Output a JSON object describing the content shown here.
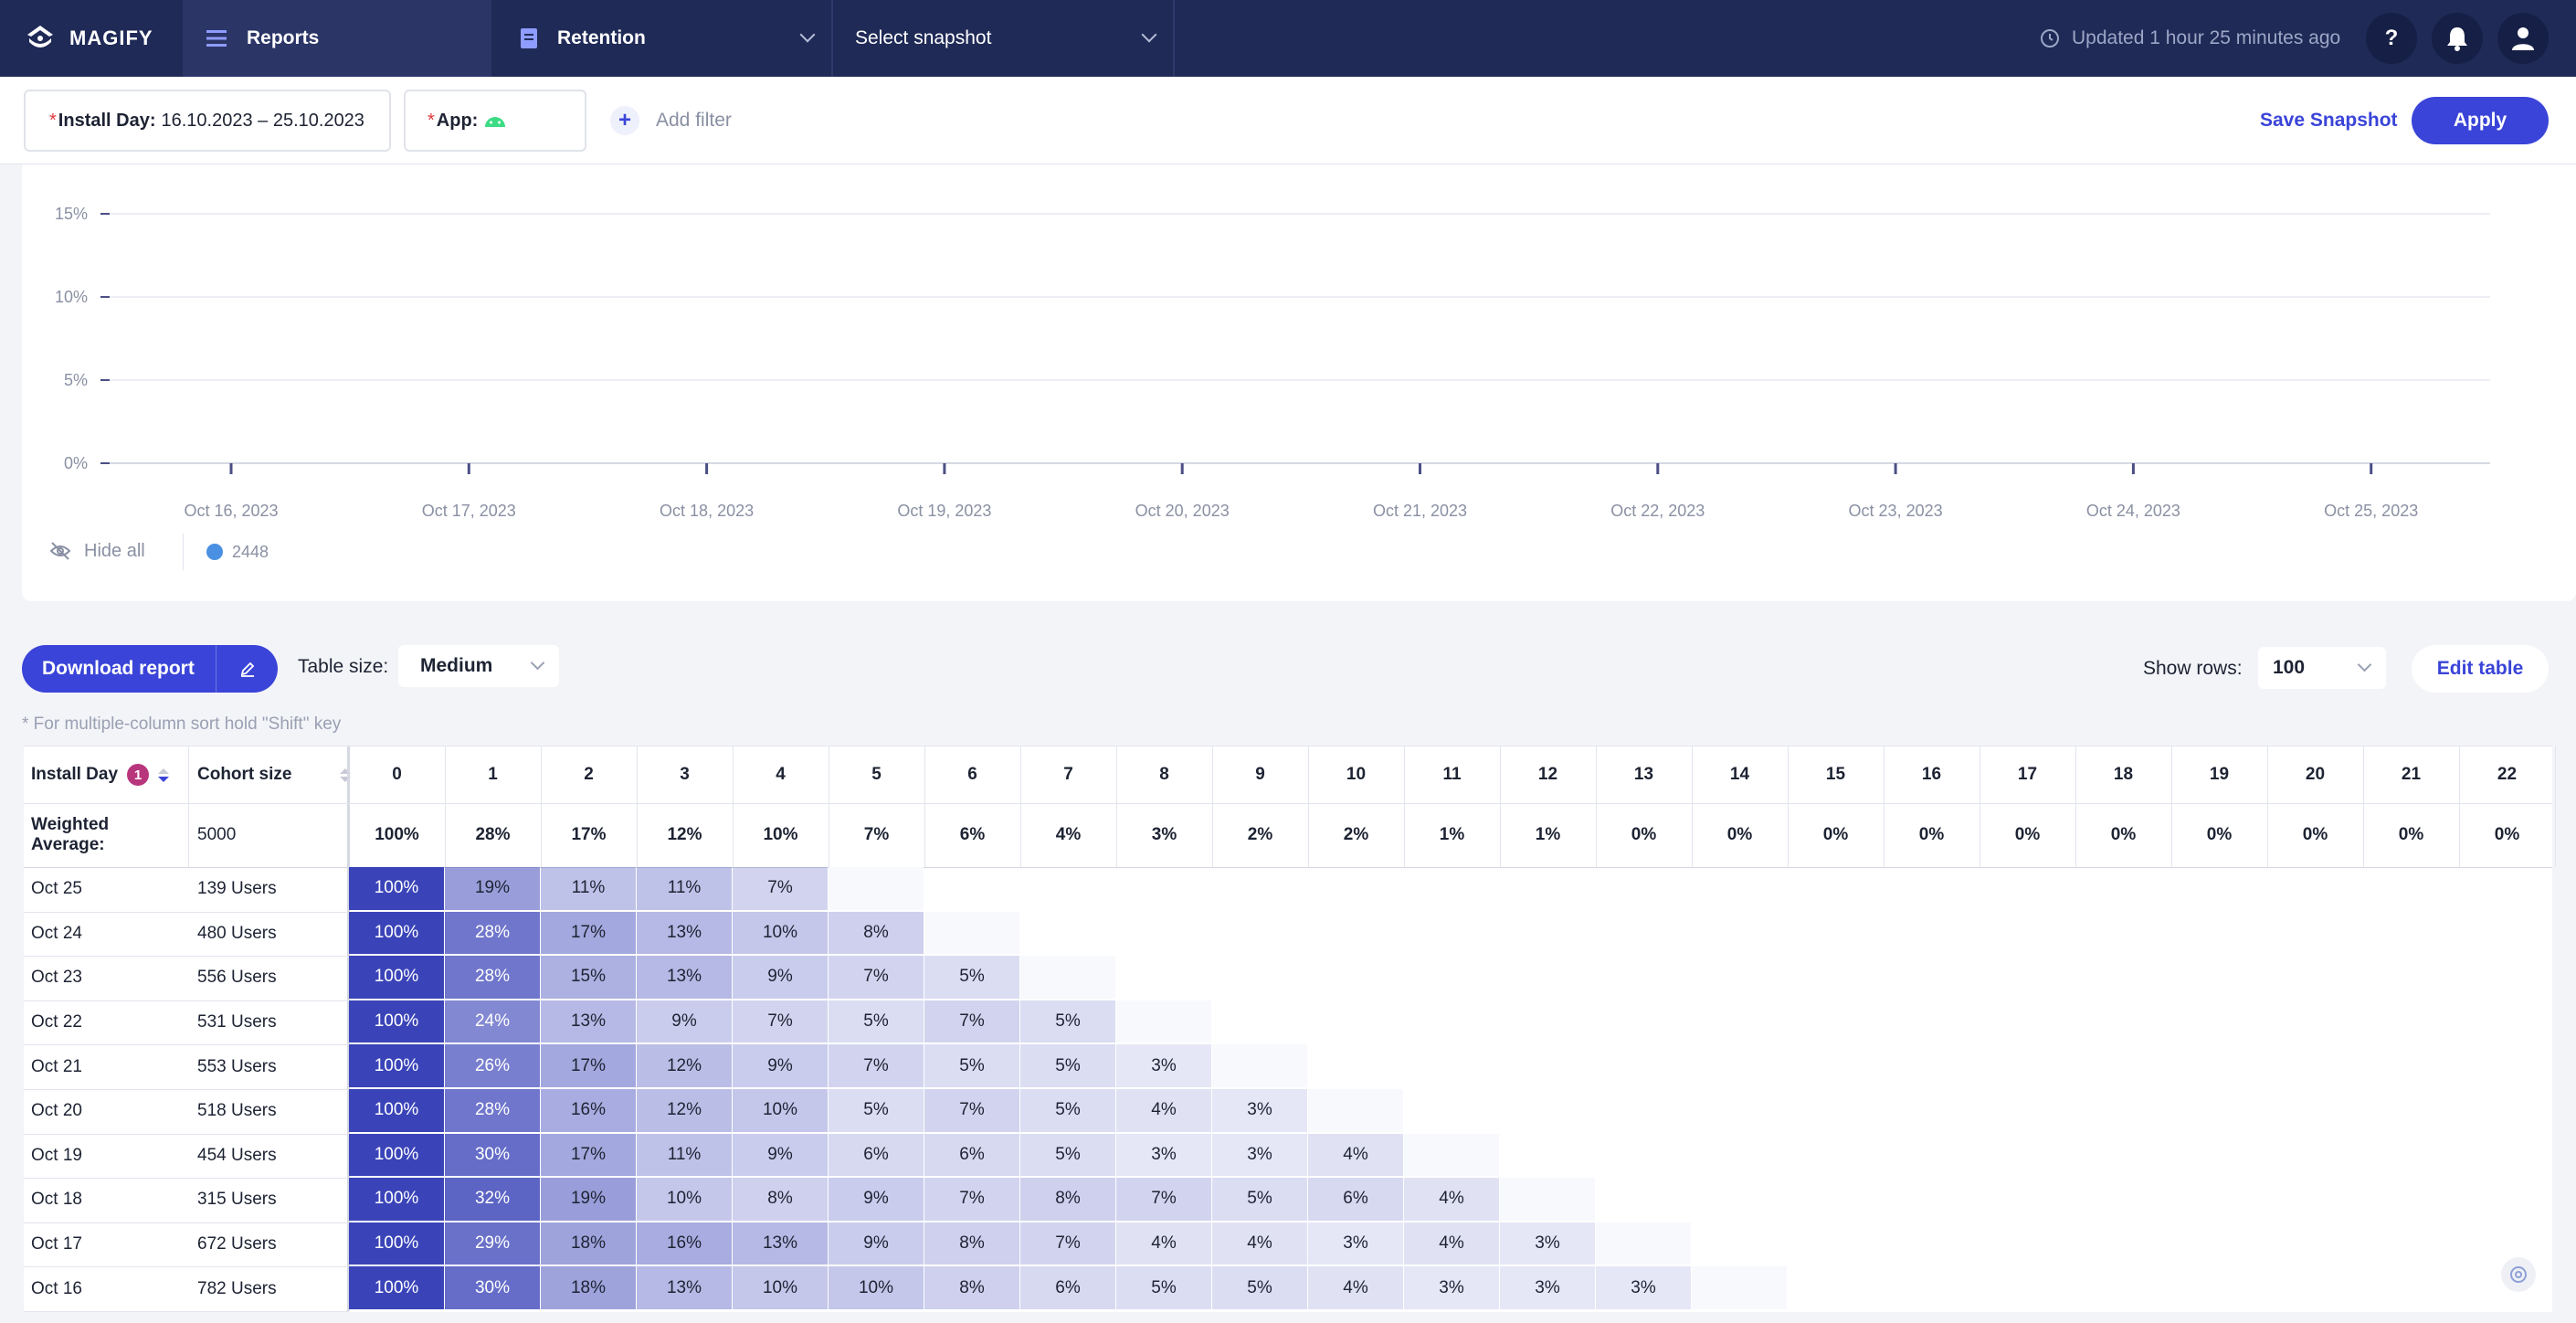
{
  "topbar": {
    "brand": "MAGIFY",
    "reports_label": "Reports",
    "report_type": "Retention",
    "snapshot_placeholder": "Select snapshot",
    "updated_text": "Updated 1 hour 25 minutes ago",
    "help_label": "?"
  },
  "filters": {
    "install_day_label": "Install Day:",
    "install_day_value": "16.10.2023 – 25.10.2023",
    "app_label": "App:",
    "add_filter": "Add filter",
    "required_mark": "*",
    "save_snapshot": "Save Snapshot",
    "apply": "Apply"
  },
  "chart_data": {
    "type": "line",
    "y_ticks": [
      "15%",
      "10%",
      "5%",
      "0%"
    ],
    "x_ticks": [
      "Oct 16, 2023",
      "Oct 17, 2023",
      "Oct 18, 2023",
      "Oct 19, 2023",
      "Oct 20, 2023",
      "Oct 21, 2023",
      "Oct 22, 2023",
      "Oct 23, 2023",
      "Oct 24, 2023",
      "Oct 25, 2023"
    ],
    "series": [
      {
        "name": "2448",
        "color": "#4a90e2",
        "values": []
      }
    ],
    "grid": true
  },
  "legend": {
    "hide_all": "Hide all",
    "item": "2448"
  },
  "toolbar": {
    "download": "Download report",
    "table_size_label": "Table size:",
    "table_size_value": "Medium",
    "show_rows_label": "Show rows:",
    "show_rows_value": "100",
    "edit_table": "Edit table",
    "sort_hint": "* For multiple-column sort hold \"Shift\" key"
  },
  "table": {
    "col_install_day": "Install Day",
    "sort_badge": "1",
    "col_cohort": "Cohort size",
    "day_cols": [
      "0",
      "1",
      "2",
      "3",
      "4",
      "5",
      "6",
      "7",
      "8",
      "9",
      "10",
      "11",
      "12",
      "13",
      "14",
      "15",
      "16",
      "17",
      "18",
      "19",
      "20",
      "21",
      "22"
    ],
    "weighted_label": "Weighted Average:",
    "weighted_cohort": "5000",
    "weighted": [
      "100%",
      "28%",
      "17%",
      "12%",
      "10%",
      "7%",
      "6%",
      "4%",
      "3%",
      "2%",
      "2%",
      "1%",
      "1%",
      "0%",
      "0%",
      "0%",
      "0%",
      "0%",
      "0%",
      "0%",
      "0%",
      "0%",
      "0%"
    ],
    "rows": [
      {
        "day": "Oct 25",
        "cohort": "139 Users",
        "values": [
          "100%",
          "19%",
          "11%",
          "11%",
          "7%"
        ]
      },
      {
        "day": "Oct 24",
        "cohort": "480 Users",
        "values": [
          "100%",
          "28%",
          "17%",
          "13%",
          "10%",
          "8%"
        ]
      },
      {
        "day": "Oct 23",
        "cohort": "556 Users",
        "values": [
          "100%",
          "28%",
          "15%",
          "13%",
          "9%",
          "7%",
          "5%"
        ]
      },
      {
        "day": "Oct 22",
        "cohort": "531 Users",
        "values": [
          "100%",
          "24%",
          "13%",
          "9%",
          "7%",
          "5%",
          "7%",
          "5%"
        ]
      },
      {
        "day": "Oct 21",
        "cohort": "553 Users",
        "values": [
          "100%",
          "26%",
          "17%",
          "12%",
          "9%",
          "7%",
          "5%",
          "5%",
          "3%"
        ]
      },
      {
        "day": "Oct 20",
        "cohort": "518 Users",
        "values": [
          "100%",
          "28%",
          "16%",
          "12%",
          "10%",
          "5%",
          "7%",
          "5%",
          "4%",
          "3%"
        ]
      },
      {
        "day": "Oct 19",
        "cohort": "454 Users",
        "values": [
          "100%",
          "30%",
          "17%",
          "11%",
          "9%",
          "6%",
          "6%",
          "5%",
          "3%",
          "3%",
          "4%"
        ]
      },
      {
        "day": "Oct 18",
        "cohort": "315 Users",
        "values": [
          "100%",
          "32%",
          "19%",
          "10%",
          "8%",
          "9%",
          "7%",
          "8%",
          "7%",
          "5%",
          "6%",
          "4%"
        ]
      },
      {
        "day": "Oct 17",
        "cohort": "672 Users",
        "values": [
          "100%",
          "29%",
          "18%",
          "16%",
          "13%",
          "9%",
          "8%",
          "7%",
          "4%",
          "4%",
          "3%",
          "4%",
          "3%"
        ]
      },
      {
        "day": "Oct 16",
        "cohort": "782 Users",
        "values": [
          "100%",
          "30%",
          "18%",
          "13%",
          "10%",
          "10%",
          "8%",
          "6%",
          "5%",
          "5%",
          "4%",
          "3%",
          "3%",
          "3%"
        ]
      }
    ]
  }
}
